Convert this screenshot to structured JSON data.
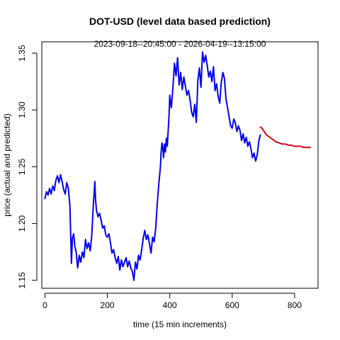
{
  "chart_data": {
    "type": "line",
    "title": "DOT-USD (level data based prediction)",
    "subtitle": "2023-09-18--20:45:00  -  2026-04-19--13:15:00",
    "xlabel": "time (15 min increments)",
    "ylabel": "price (actual and predicted)",
    "xlim": [
      -10,
      875
    ],
    "ylim": [
      1.143,
      1.36
    ],
    "x_ticks": [
      0,
      200,
      400,
      600,
      800
    ],
    "y_ticks": [
      1.15,
      1.2,
      1.25,
      1.3,
      1.35
    ],
    "x_tick_labels": [
      "0",
      "200",
      "400",
      "600",
      "800"
    ],
    "y_tick_labels": [
      "1.15",
      "1.20",
      "1.25",
      "1.30",
      "1.35"
    ],
    "grid": false,
    "legend": "none",
    "series": [
      {
        "role": "actual",
        "color": "#0000ee",
        "x": [
          0,
          5,
          10,
          15,
          20,
          25,
          30,
          35,
          40,
          45,
          50,
          55,
          60,
          65,
          70,
          75,
          80,
          82,
          85,
          88,
          92,
          96,
          100,
          105,
          110,
          115,
          120,
          125,
          130,
          135,
          140,
          145,
          150,
          155,
          158,
          160,
          162,
          165,
          170,
          175,
          180,
          185,
          190,
          195,
          200,
          205,
          210,
          215,
          220,
          225,
          230,
          235,
          240,
          245,
          250,
          255,
          260,
          265,
          270,
          275,
          280,
          285,
          290,
          295,
          300,
          305,
          310,
          315,
          320,
          325,
          330,
          335,
          340,
          345,
          350,
          355,
          360,
          365,
          370,
          372,
          375,
          378,
          380,
          383,
          386,
          389,
          392,
          395,
          398,
          400,
          405,
          410,
          415,
          420,
          425,
          430,
          435,
          440,
          445,
          450,
          455,
          460,
          465,
          470,
          475,
          480,
          485,
          490,
          495,
          500,
          505,
          510,
          515,
          520,
          525,
          530,
          535,
          540,
          545,
          550,
          555,
          560,
          565,
          570,
          575,
          580,
          585,
          590,
          595,
          600,
          605,
          610,
          615,
          620,
          625,
          630,
          635,
          640,
          645,
          650,
          655,
          660,
          665,
          670,
          675,
          680,
          685,
          690
        ],
        "y": [
          1.222,
          1.228,
          1.225,
          1.231,
          1.226,
          1.233,
          1.229,
          1.238,
          1.242,
          1.236,
          1.243,
          1.237,
          1.23,
          1.226,
          1.236,
          1.231,
          1.216,
          1.196,
          1.165,
          1.187,
          1.191,
          1.18,
          1.175,
          1.161,
          1.172,
          1.166,
          1.175,
          1.17,
          1.186,
          1.178,
          1.183,
          1.176,
          1.189,
          1.216,
          1.228,
          1.237,
          1.222,
          1.212,
          1.206,
          1.209,
          1.203,
          1.196,
          1.198,
          1.19,
          1.188,
          1.191,
          1.183,
          1.174,
          1.177,
          1.17,
          1.165,
          1.171,
          1.159,
          1.168,
          1.162,
          1.166,
          1.17,
          1.162,
          1.167,
          1.161,
          1.158,
          1.15,
          1.166,
          1.16,
          1.172,
          1.168,
          1.177,
          1.187,
          1.194,
          1.186,
          1.19,
          1.182,
          1.174,
          1.188,
          1.184,
          1.196,
          1.218,
          1.235,
          1.25,
          1.262,
          1.271,
          1.266,
          1.258,
          1.27,
          1.263,
          1.275,
          1.268,
          1.282,
          1.297,
          1.313,
          1.302,
          1.319,
          1.341,
          1.33,
          1.346,
          1.322,
          1.333,
          1.318,
          1.329,
          1.321,
          1.313,
          1.317,
          1.309,
          1.298,
          1.294,
          1.305,
          1.289,
          1.326,
          1.337,
          1.32,
          1.351,
          1.342,
          1.348,
          1.339,
          1.329,
          1.334,
          1.325,
          1.338,
          1.317,
          1.323,
          1.312,
          1.306,
          1.324,
          1.333,
          1.328,
          1.31,
          1.302,
          1.294,
          1.286,
          1.284,
          1.292,
          1.289,
          1.281,
          1.286,
          1.282,
          1.273,
          1.279,
          1.271,
          1.276,
          1.268,
          1.272,
          1.266,
          1.258,
          1.262,
          1.255,
          1.26,
          1.272,
          1.278
        ]
      },
      {
        "role": "predicted",
        "color": "#d9001b",
        "x": [
          690,
          695,
          700,
          705,
          710,
          715,
          720,
          725,
          730,
          740,
          750,
          760,
          770,
          780,
          790,
          800,
          810,
          820,
          830,
          840,
          850
        ],
        "y": [
          1.285,
          1.284,
          1.282,
          1.28,
          1.278,
          1.277,
          1.276,
          1.275,
          1.274,
          1.272,
          1.271,
          1.27,
          1.27,
          1.269,
          1.269,
          1.268,
          1.268,
          1.268,
          1.267,
          1.267,
          1.267
        ]
      }
    ]
  }
}
